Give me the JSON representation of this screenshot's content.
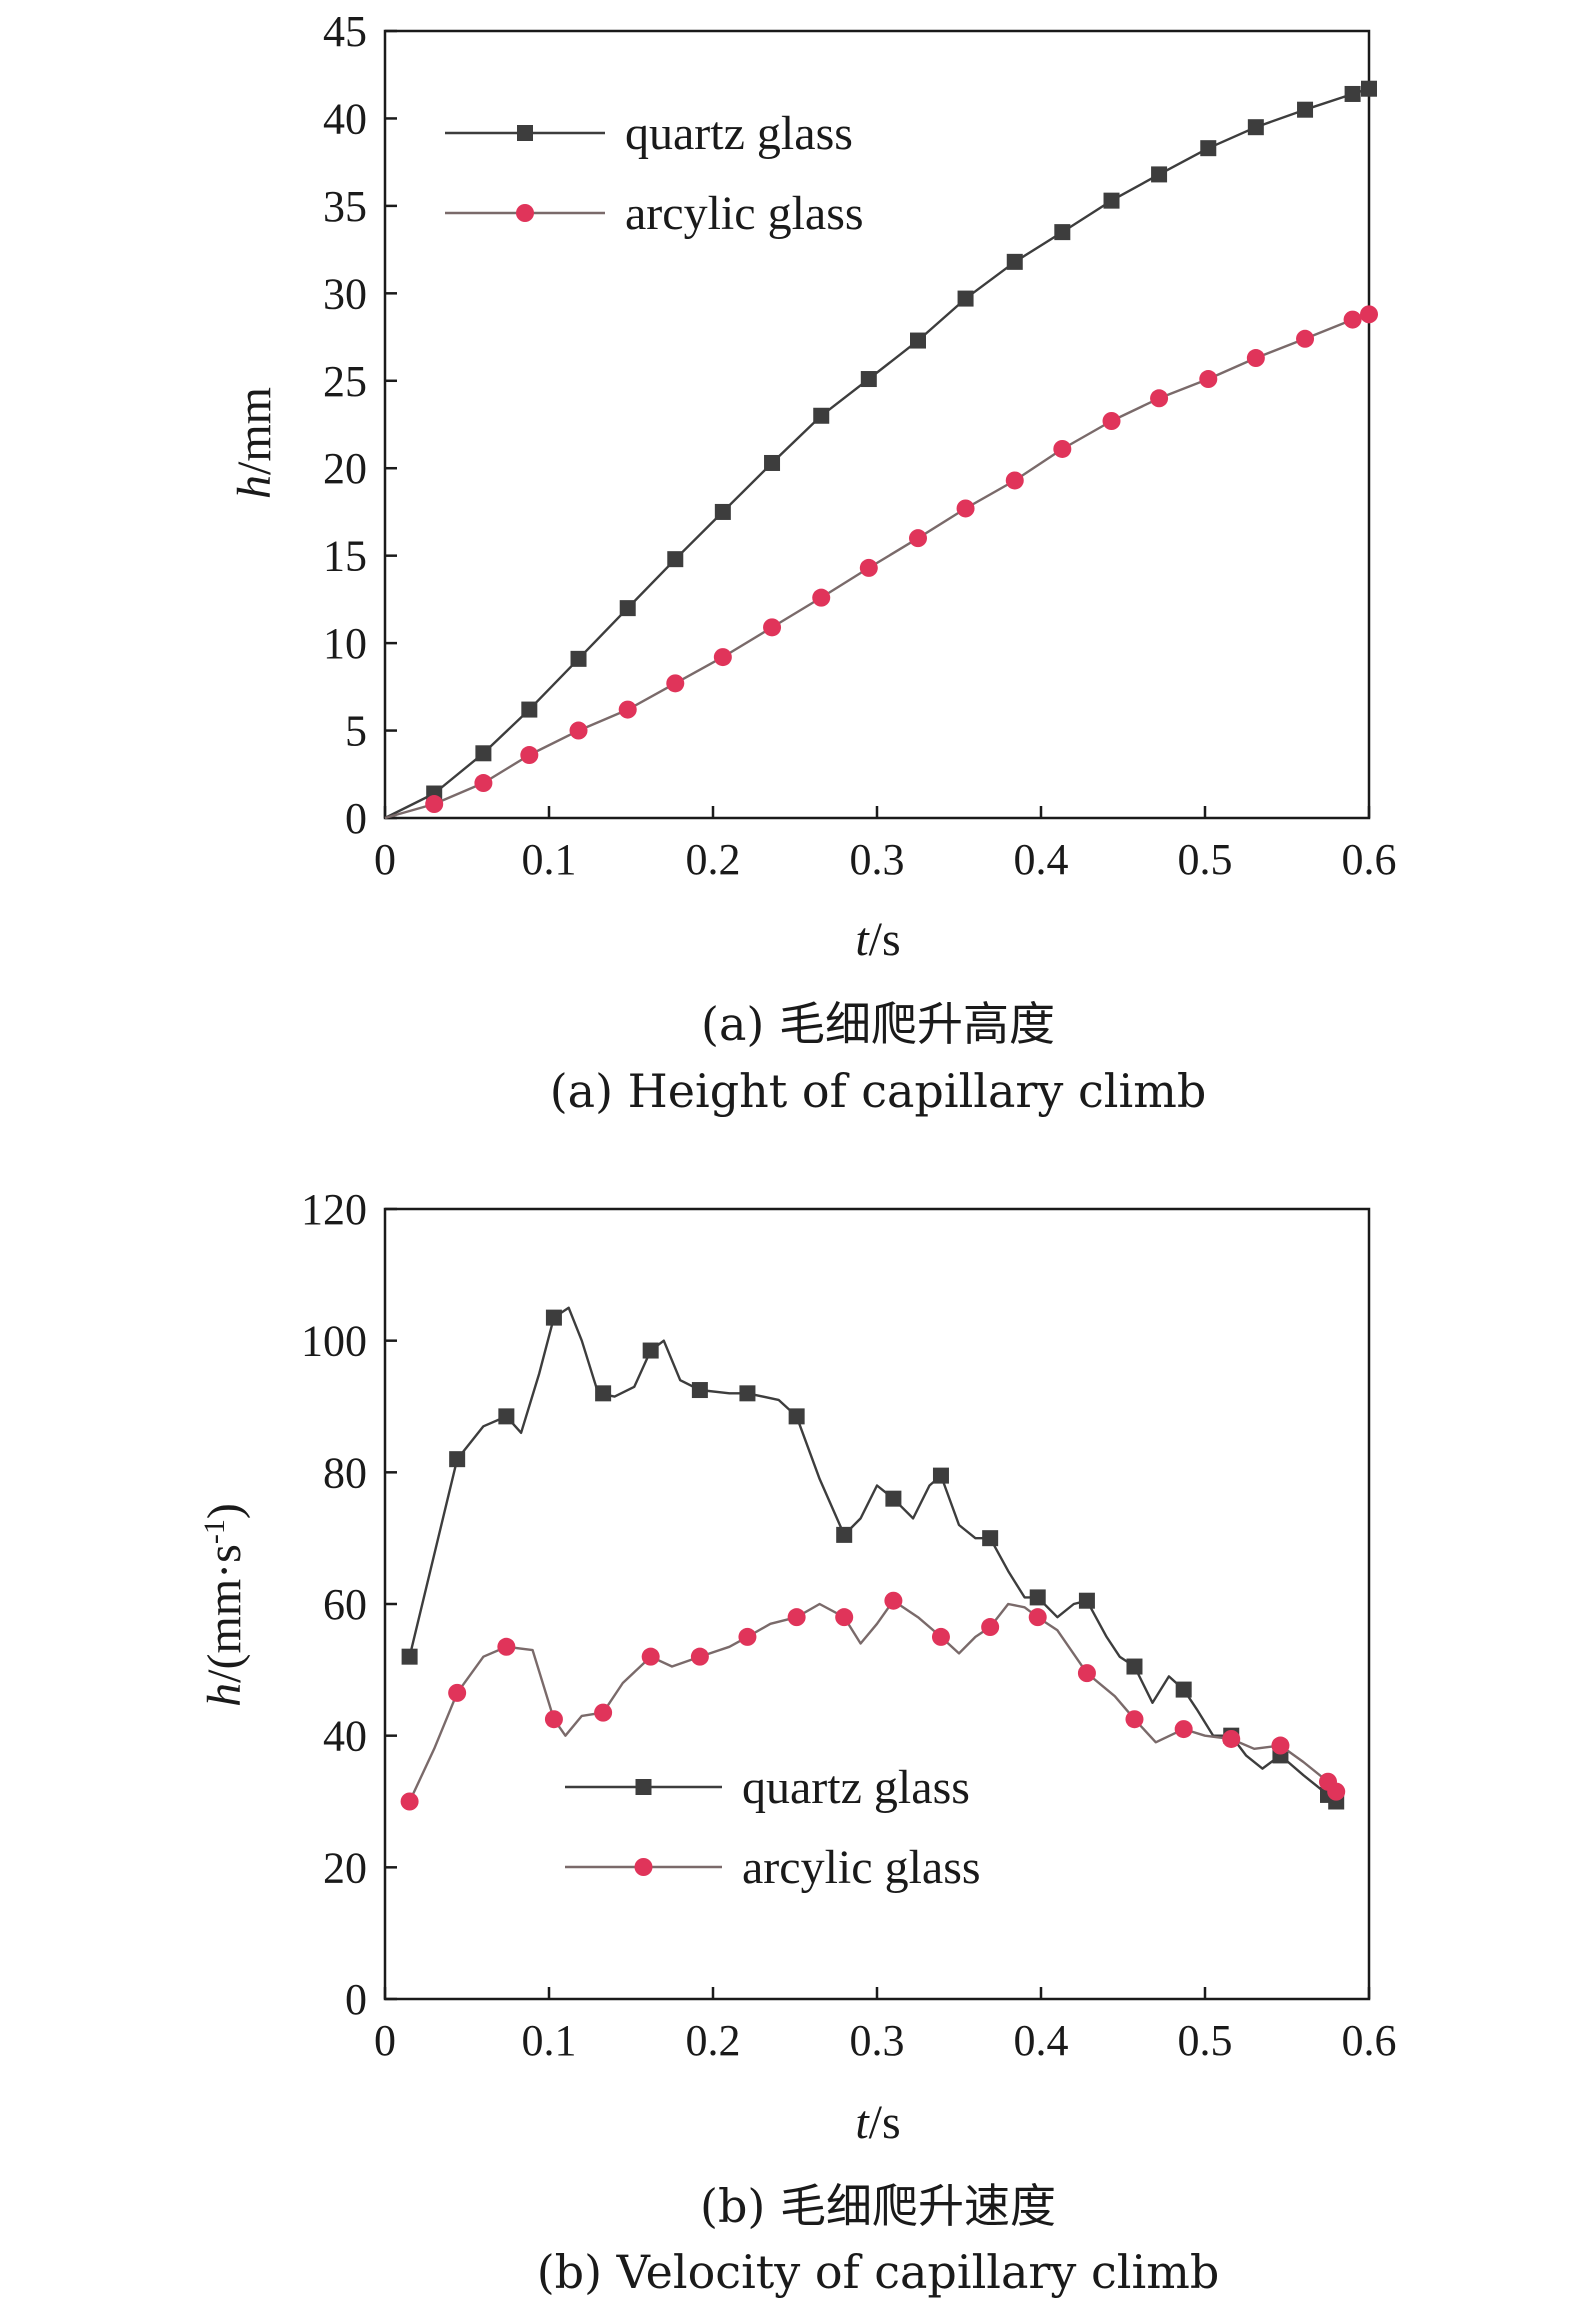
{
  "colors": {
    "quartz": "#3d3d3d",
    "acrylic": "#e0345a",
    "acrylic_line": "#7a6a6a",
    "axis": "#1a1a1a"
  },
  "chart_data": [
    {
      "type": "line",
      "caption_cn": "(a) 毛细爬升高度",
      "caption_en": "(a) Height of capillary climb",
      "xlabel": {
        "var": "t",
        "unit": "/s"
      },
      "ylabel": {
        "var": "h",
        "unit": "/mm"
      },
      "xlim": [
        0,
        0.6
      ],
      "ylim": [
        0,
        45
      ],
      "xticks": [
        "0",
        "0.1",
        "0.2",
        "0.3",
        "0.4",
        "0.5",
        "0.6"
      ],
      "yticks": [
        "0",
        "5",
        "10",
        "15",
        "20",
        "25",
        "30",
        "35",
        "40",
        "45"
      ],
      "grid": false,
      "legend_position": "top-left",
      "series": [
        {
          "name": "quartz glass",
          "marker": "square",
          "x": [
            0,
            0.03,
            0.06,
            0.088,
            0.118,
            0.148,
            0.177,
            0.206,
            0.236,
            0.266,
            0.295,
            0.325,
            0.354,
            0.384,
            0.413,
            0.443,
            0.472,
            0.502,
            0.531,
            0.561,
            0.59,
            0.6
          ],
          "y": [
            0,
            1.4,
            3.7,
            6.2,
            9.1,
            12.0,
            14.8,
            17.5,
            20.3,
            23.0,
            25.1,
            27.3,
            29.7,
            31.8,
            33.5,
            35.3,
            36.8,
            38.3,
            39.5,
            40.5,
            41.4,
            41.7
          ]
        },
        {
          "name": "arcylic glass",
          "marker": "circle",
          "x": [
            0,
            0.03,
            0.06,
            0.088,
            0.118,
            0.148,
            0.177,
            0.206,
            0.236,
            0.266,
            0.295,
            0.325,
            0.354,
            0.384,
            0.413,
            0.443,
            0.472,
            0.502,
            0.531,
            0.561,
            0.59,
            0.6
          ],
          "y": [
            0,
            0.8,
            2.0,
            3.6,
            5.0,
            6.2,
            7.7,
            9.2,
            10.9,
            12.6,
            14.3,
            16.0,
            17.7,
            19.3,
            21.1,
            22.7,
            24.0,
            25.1,
            26.3,
            27.4,
            28.5,
            28.8
          ]
        }
      ]
    },
    {
      "type": "line",
      "caption_cn": "(b) 毛细爬升速度",
      "caption_en": "(b) Velocity of capillary climb",
      "xlabel": {
        "var": "t",
        "unit": "/s"
      },
      "ylabel": {
        "var": "h",
        "unit": "/(mm·s",
        "sup": "-1",
        "close": ")"
      },
      "xlim": [
        0,
        0.6
      ],
      "ylim": [
        0,
        120
      ],
      "xticks": [
        "0",
        "0.1",
        "0.2",
        "0.3",
        "0.4",
        "0.5",
        "0.6"
      ],
      "yticks": [
        "0",
        "20",
        "40",
        "60",
        "80",
        "100",
        "120"
      ],
      "grid": false,
      "legend_position": "bottom-center",
      "series": [
        {
          "name": "quartz glass",
          "marker": "square",
          "x": [
            0.015,
            0.044,
            0.074,
            0.103,
            0.133,
            0.162,
            0.192,
            0.221,
            0.251,
            0.28,
            0.31,
            0.339,
            0.369,
            0.398,
            0.428,
            0.457,
            0.487,
            0.516,
            0.546,
            0.575,
            0.58
          ],
          "y": [
            52,
            82,
            88.5,
            103.5,
            92,
            98.5,
            92.5,
            92,
            88.5,
            70.5,
            76,
            79.5,
            70,
            61,
            60.5,
            50.5,
            47,
            40,
            37,
            31,
            30
          ],
          "curve_x": [
            0.015,
            0.044,
            0.06,
            0.074,
            0.083,
            0.094,
            0.103,
            0.112,
            0.12,
            0.13,
            0.14,
            0.152,
            0.162,
            0.17,
            0.18,
            0.192,
            0.21,
            0.221,
            0.24,
            0.251,
            0.265,
            0.28,
            0.29,
            0.3,
            0.31,
            0.322,
            0.332,
            0.339,
            0.35,
            0.36,
            0.369,
            0.38,
            0.39,
            0.398,
            0.41,
            0.42,
            0.428,
            0.44,
            0.448,
            0.457,
            0.468,
            0.478,
            0.487,
            0.495,
            0.505,
            0.516,
            0.525,
            0.535,
            0.546,
            0.56,
            0.575,
            0.58
          ],
          "curve_y": [
            52,
            82,
            87,
            88.5,
            86,
            95,
            103.5,
            105,
            100,
            92,
            91.5,
            93,
            98.5,
            100,
            94,
            92.5,
            92,
            92,
            91,
            88.5,
            79,
            70.5,
            73,
            78,
            76,
            73,
            78,
            79.5,
            72,
            70,
            70,
            65,
            61,
            61,
            58,
            60,
            60.5,
            55,
            52,
            50.5,
            45,
            49,
            47,
            44,
            40,
            40,
            37,
            35,
            37,
            34,
            31,
            30
          ]
        },
        {
          "name": "arcylic glass",
          "marker": "circle",
          "x": [
            0.015,
            0.044,
            0.074,
            0.103,
            0.133,
            0.162,
            0.192,
            0.221,
            0.251,
            0.28,
            0.31,
            0.339,
            0.369,
            0.398,
            0.428,
            0.457,
            0.487,
            0.516,
            0.546,
            0.575,
            0.58
          ],
          "y": [
            30,
            46.5,
            53.5,
            42.5,
            43.5,
            52,
            52,
            55,
            58,
            58,
            60.5,
            55,
            56.5,
            58,
            49.5,
            42.5,
            41,
            39.5,
            38.5,
            33,
            31.5
          ],
          "curve_x": [
            0.015,
            0.03,
            0.044,
            0.06,
            0.074,
            0.09,
            0.103,
            0.11,
            0.12,
            0.133,
            0.145,
            0.162,
            0.175,
            0.192,
            0.21,
            0.221,
            0.235,
            0.251,
            0.265,
            0.28,
            0.29,
            0.3,
            0.31,
            0.325,
            0.339,
            0.35,
            0.36,
            0.369,
            0.38,
            0.39,
            0.398,
            0.41,
            0.428,
            0.445,
            0.457,
            0.47,
            0.487,
            0.5,
            0.516,
            0.53,
            0.546,
            0.56,
            0.575,
            0.58
          ],
          "curve_y": [
            30,
            38,
            46.5,
            52,
            53.5,
            53,
            42.5,
            40,
            43,
            43.5,
            48,
            52,
            50.5,
            52,
            53.5,
            55,
            57,
            58,
            60,
            58,
            54,
            57,
            60.5,
            58,
            55,
            52.5,
            55,
            56.5,
            60,
            59.5,
            58,
            56,
            49.5,
            46,
            42.5,
            39,
            41,
            40,
            39.5,
            38,
            38.5,
            36,
            33,
            31.5
          ]
        }
      ]
    }
  ]
}
